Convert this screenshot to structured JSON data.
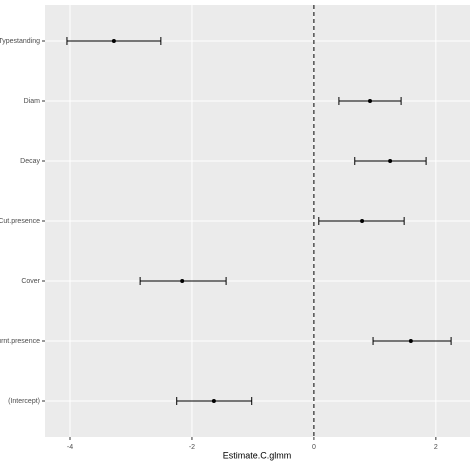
{
  "chart_data": {
    "type": "forest",
    "x_label": "Estimate.C.glmm",
    "categories": [
      "Typestanding",
      "Diam",
      "Decay",
      "Cut.presence",
      "Cover",
      "Burnt.presence",
      "(Intercept)"
    ],
    "values": [
      -3.28,
      0.92,
      1.25,
      0.79,
      -2.16,
      1.59,
      -1.64
    ],
    "lower": [
      -4.05,
      0.41,
      0.67,
      0.08,
      -2.85,
      0.97,
      -2.25
    ],
    "upper": [
      -2.51,
      1.43,
      1.84,
      1.48,
      -1.44,
      2.25,
      -1.02
    ],
    "color": "#000000",
    "vline": 0,
    "xlim": [
      -4.41,
      2.56
    ],
    "xticks": [
      -4,
      -2,
      0,
      2
    ],
    "grid": true
  }
}
